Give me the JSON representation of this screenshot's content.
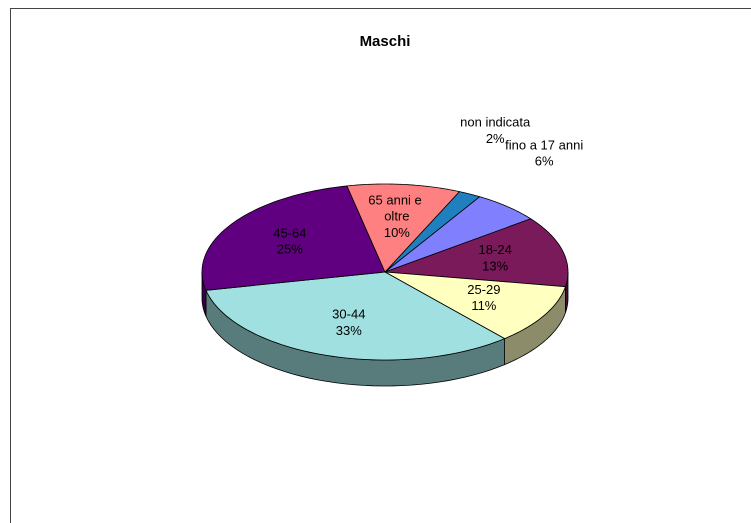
{
  "chart_data": {
    "type": "pie3d",
    "title": "Maschi",
    "categories": [
      "non indicata",
      "fino a 17 anni",
      "18-24",
      "25-29",
      "30-44",
      "45-64",
      "65 anni e oltre"
    ],
    "values": [
      2,
      6,
      13,
      11,
      33,
      25,
      10
    ],
    "value_labels": [
      "2%",
      "6%",
      "13%",
      "11%",
      "33%",
      "25%",
      "10%"
    ],
    "colors": [
      "#1f7fbf",
      "#8080ff",
      "#7a1a5a",
      "#ffffc0",
      "#a0e0e0",
      "#600080",
      "#ff8080"
    ]
  }
}
